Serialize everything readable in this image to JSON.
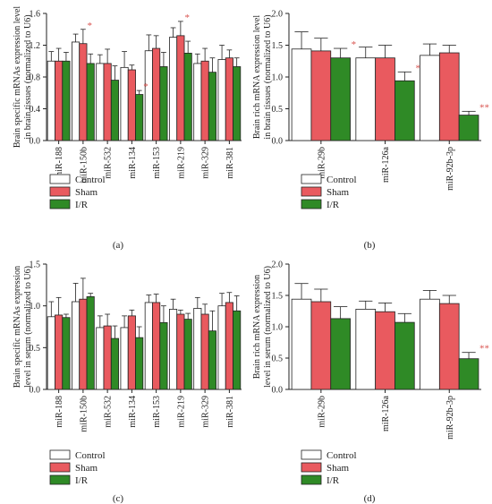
{
  "colors": {
    "control": "#ffffff",
    "sham": "#e95a5f",
    "ir": "#2f8a26",
    "axis": "#222222",
    "star": "#d9534f"
  },
  "chart_data": [
    {
      "id": "a",
      "type": "bar",
      "panel_label": "(a)",
      "ylabel_lines": [
        "Brain specific mRNAs expression level",
        "in brain tissues (normalized to U6)"
      ],
      "ylim": [
        0,
        1.6
      ],
      "yticks": [
        "0.0",
        "0.4",
        "0.8",
        "1.2",
        "1.6"
      ],
      "ytick_values": [
        0,
        0.4,
        0.8,
        1.2,
        1.6
      ],
      "categories": [
        "miR-188",
        "miR-150b",
        "miR-532",
        "miR-134",
        "miR-153",
        "miR-219",
        "miR-329",
        "miR-381"
      ],
      "series": [
        {
          "name": "Control",
          "values": [
            1.0,
            1.24,
            0.97,
            0.92,
            1.13,
            1.3,
            0.97,
            1.02
          ],
          "errors": [
            0.12,
            0.1,
            0.11,
            0.2,
            0.2,
            0.12,
            0.12,
            0.18
          ]
        },
        {
          "name": "Sham",
          "values": [
            1.0,
            1.22,
            0.97,
            0.89,
            1.16,
            1.32,
            1.0,
            1.04
          ],
          "errors": [
            0.16,
            0.18,
            0.18,
            0.06,
            0.16,
            0.18,
            0.16,
            0.1
          ]
        },
        {
          "name": "I/R",
          "values": [
            1.0,
            0.97,
            0.76,
            0.58,
            0.93,
            1.1,
            0.86,
            0.93
          ],
          "errors": [
            0.11,
            0.12,
            0.18,
            0.05,
            0.18,
            0.15,
            0.18,
            0.11
          ]
        }
      ],
      "annotations": [
        {
          "category": 1,
          "series": 1,
          "text": "*"
        },
        {
          "category": 3,
          "series": 2,
          "text": "*"
        },
        {
          "category": 5,
          "series": 1,
          "text": "*"
        }
      ],
      "legend": [
        "Control",
        "Sham",
        "I/R"
      ]
    },
    {
      "id": "b",
      "type": "bar",
      "panel_label": "(b)",
      "ylabel_lines": [
        "Brain rich mRNA expression level",
        "in brain tissues (normalized to U6)"
      ],
      "ylim": [
        0,
        2.0
      ],
      "yticks": [
        "0.0",
        "0.5",
        "1.0",
        "1.5",
        "2.0"
      ],
      "ytick_values": [
        0,
        0.5,
        1.0,
        1.5,
        2.0
      ],
      "categories": [
        "miR-29b",
        "miR-126a",
        "miR-92b-3p"
      ],
      "series": [
        {
          "name": "Control",
          "values": [
            1.44,
            1.3,
            1.34
          ],
          "errors": [
            0.27,
            0.17,
            0.18
          ]
        },
        {
          "name": "Sham",
          "values": [
            1.41,
            1.3,
            1.38
          ],
          "errors": [
            0.2,
            0.2,
            0.12
          ]
        },
        {
          "name": "I/R",
          "values": [
            1.3,
            0.94,
            0.4
          ],
          "errors": [
            0.15,
            0.14,
            0.06
          ]
        }
      ],
      "annotations": [
        {
          "category": 0,
          "series": 2,
          "text": "*"
        },
        {
          "category": 1,
          "series": 2,
          "text": "*"
        },
        {
          "category": 2,
          "series": 2,
          "text": "**"
        }
      ],
      "legend": [
        "Control",
        "Sham",
        "I/R"
      ]
    },
    {
      "id": "c",
      "type": "bar",
      "panel_label": "(c)",
      "ylabel_lines": [
        "Brain specific mRNAs expression",
        "level in serum (normalized to U6)"
      ],
      "ylim": [
        0,
        1.5
      ],
      "yticks": [
        "0.0",
        "0.5",
        "1.0",
        "1.5"
      ],
      "ytick_values": [
        0,
        0.5,
        1.0,
        1.5
      ],
      "categories": [
        "miR-188",
        "miR-150b",
        "miR-532",
        "miR-134",
        "miR-153",
        "miR-219",
        "miR-329",
        "miR-381"
      ],
      "series": [
        {
          "name": "Control",
          "values": [
            0.87,
            1.05,
            0.74,
            0.74,
            1.04,
            0.96,
            0.97,
            1.0
          ],
          "errors": [
            0.18,
            0.22,
            0.14,
            0.14,
            0.09,
            0.12,
            0.13,
            0.15
          ]
        },
        {
          "name": "Sham",
          "values": [
            0.89,
            1.08,
            0.76,
            0.88,
            1.04,
            0.9,
            0.9,
            1.04
          ],
          "errors": [
            0.21,
            0.25,
            0.14,
            0.07,
            0.1,
            0.05,
            0.12,
            0.12
          ]
        },
        {
          "name": "I/R",
          "values": [
            0.86,
            1.11,
            0.61,
            0.62,
            0.8,
            0.84,
            0.7,
            0.94
          ],
          "errors": [
            0.04,
            0.04,
            0.15,
            0.13,
            0.2,
            0.07,
            0.24,
            0.18
          ]
        }
      ],
      "annotations": [],
      "legend": [
        "Control",
        "Sham",
        "I/R"
      ]
    },
    {
      "id": "d",
      "type": "bar",
      "panel_label": "(d)",
      "ylabel_lines": [
        "Brain rich mRNA expression",
        "level in serum (normalized to U6)"
      ],
      "ylim": [
        0,
        2.0
      ],
      "yticks": [
        "0.0",
        "0.5",
        "1.0",
        "1.5",
        "2.0"
      ],
      "ytick_values": [
        0,
        0.5,
        1.0,
        1.5,
        2.0
      ],
      "categories": [
        "miR-29b",
        "miR-126a",
        "miR-92b-3p"
      ],
      "series": [
        {
          "name": "Control",
          "values": [
            1.44,
            1.28,
            1.44
          ],
          "errors": [
            0.25,
            0.13,
            0.14
          ]
        },
        {
          "name": "Sham",
          "values": [
            1.4,
            1.24,
            1.37
          ],
          "errors": [
            0.2,
            0.14,
            0.13
          ]
        },
        {
          "name": "I/R",
          "values": [
            1.13,
            1.07,
            0.49
          ],
          "errors": [
            0.19,
            0.14,
            0.1
          ]
        }
      ],
      "annotations": [
        {
          "category": 2,
          "series": 2,
          "text": "**"
        }
      ],
      "legend": [
        "Control",
        "Sham",
        "I/R"
      ]
    }
  ]
}
